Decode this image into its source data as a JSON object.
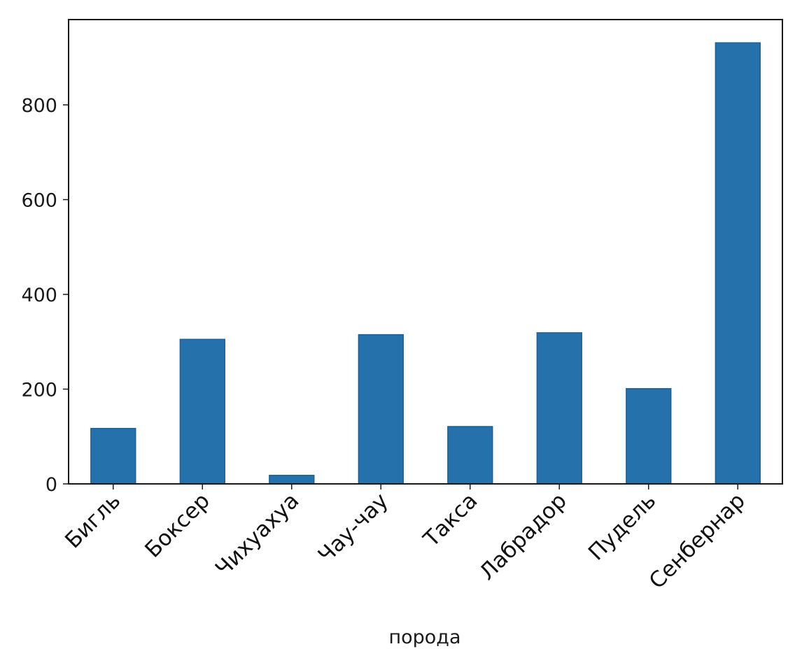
{
  "chart_data": {
    "type": "bar",
    "categories": [
      "Бигль",
      "Боксер",
      "Чихуахуа",
      "Чау-чау",
      "Такса",
      "Лабрадор",
      "Пудель",
      "Сенбернар"
    ],
    "values": [
      117,
      305,
      18,
      315,
      121,
      319,
      201,
      931
    ],
    "title": "",
    "xlabel": "порода",
    "ylabel": "",
    "ylim": [
      0,
      980
    ],
    "yticks": [
      0,
      200,
      400,
      600,
      800
    ],
    "ytick_labels": [
      "0",
      "200",
      "400",
      "600",
      "800"
    ],
    "bar_color": "#2471ab",
    "bar_edge_color": "#1f5f95",
    "grid": false,
    "legend": "none"
  }
}
